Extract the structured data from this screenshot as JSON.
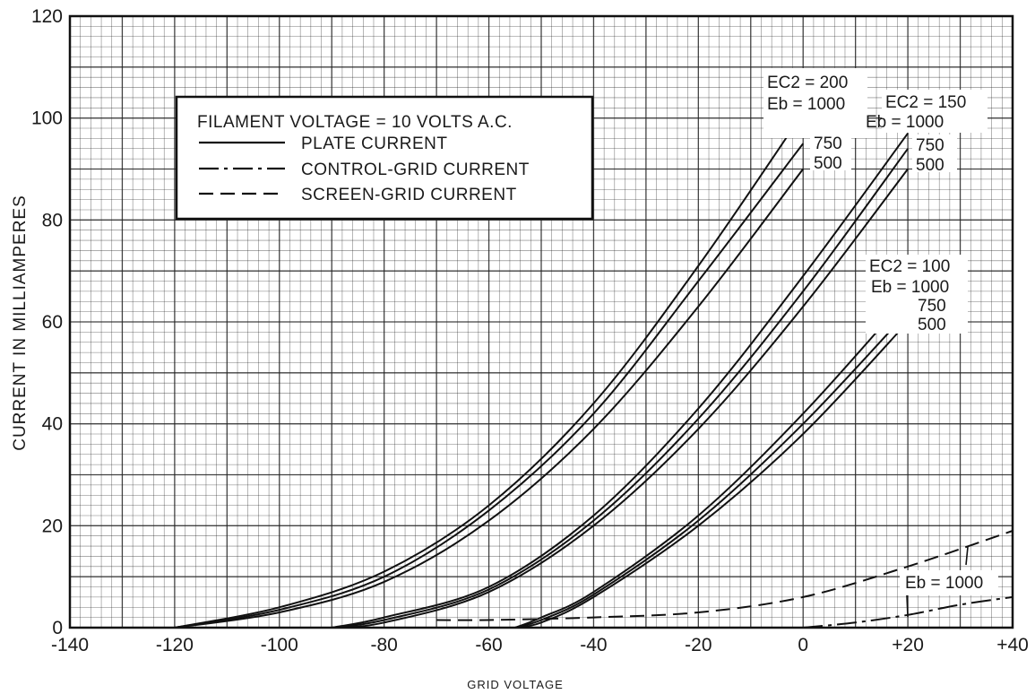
{
  "chart_data": {
    "type": "line",
    "xlabel": "GRID VOLTAGE",
    "ylabel": "CURRENT IN MILLIAMPERES",
    "xlim": [
      -140,
      40
    ],
    "ylim": [
      0,
      120
    ],
    "x_ticks": [
      "-140",
      "-120",
      "-100",
      "-80",
      "-60",
      "-40",
      "-20",
      "0",
      "+20",
      "+40"
    ],
    "y_ticks": [
      "0",
      "20",
      "40",
      "60",
      "80",
      "100",
      "120"
    ],
    "grid": true,
    "legend": {
      "placement": "top-left",
      "title": "FILAMENT VOLTAGE = 10 VOLTS A.C.",
      "entries": [
        {
          "label": "PLATE CURRENT",
          "style": "solid"
        },
        {
          "label": "CONTROL-GRID CURRENT",
          "style": "dash-dot"
        },
        {
          "label": "SCREEN-GRID CURRENT",
          "style": "dashed"
        }
      ]
    },
    "series": [
      {
        "style": "solid",
        "x": [
          -120,
          -100,
          -80,
          -60,
          -40,
          -20,
          0
        ],
        "y": [
          0,
          4,
          11,
          24,
          44,
          71,
          101
        ]
      },
      {
        "style": "solid",
        "x": [
          -120,
          -100,
          -80,
          -60,
          -40,
          -20,
          0
        ],
        "y": [
          0,
          3.5,
          10,
          23,
          42,
          68,
          95
        ]
      },
      {
        "style": "solid",
        "x": [
          -120,
          -100,
          -80,
          -60,
          -40,
          -20,
          0
        ],
        "y": [
          0,
          3,
          9,
          21,
          39,
          63,
          90
        ]
      },
      {
        "style": "solid",
        "x": [
          -90,
          -80,
          -60,
          -40,
          -20,
          0,
          20
        ],
        "y": [
          0,
          2,
          8,
          22,
          43,
          69,
          97
        ]
      },
      {
        "style": "solid",
        "x": [
          -90,
          -80,
          -60,
          -40,
          -20,
          0,
          20
        ],
        "y": [
          0,
          1.5,
          7.5,
          21,
          41,
          66,
          94
        ]
      },
      {
        "style": "solid",
        "x": [
          -90,
          -80,
          -60,
          -40,
          -20,
          0,
          20
        ],
        "y": [
          0,
          1,
          7,
          20,
          39,
          63,
          90
        ]
      },
      {
        "style": "solid",
        "x": [
          -55,
          -50,
          -40,
          -20,
          0,
          20
        ],
        "y": [
          0,
          2,
          7,
          22,
          42,
          65
        ]
      },
      {
        "style": "solid",
        "x": [
          -55,
          -50,
          -40,
          -20,
          0,
          20
        ],
        "y": [
          0,
          1.5,
          6.5,
          21,
          40,
          62
        ]
      },
      {
        "style": "solid",
        "x": [
          -55,
          -50,
          -40,
          -20,
          0,
          20
        ],
        "y": [
          0,
          1,
          6,
          20,
          38,
          60
        ]
      },
      {
        "style": "dashed",
        "x": [
          -70,
          -60,
          -40,
          -20,
          0,
          20,
          40
        ],
        "y": [
          1.5,
          1.5,
          2,
          3,
          6,
          12,
          19
        ]
      },
      {
        "style": "dash-dot",
        "x": [
          0,
          10,
          20,
          30,
          40
        ],
        "y": [
          0,
          1,
          2.5,
          4.5,
          6
        ]
      }
    ],
    "annotations": {
      "ec2_200": {
        "ec2": "EC2 = 200",
        "eb1000": "Eb = 1000",
        "v750": "750",
        "v500": "500"
      },
      "ec2_150": {
        "ec2": "EC2 = 150",
        "eb1000": "Eb = 1000",
        "v750": "750",
        "v500": "500"
      },
      "ec2_100": {
        "ec2": "EC2 = 100",
        "eb1000": "Eb = 1000",
        "v750": "750",
        "v500": "500"
      },
      "grid_eb": "Eb = 1000"
    }
  }
}
